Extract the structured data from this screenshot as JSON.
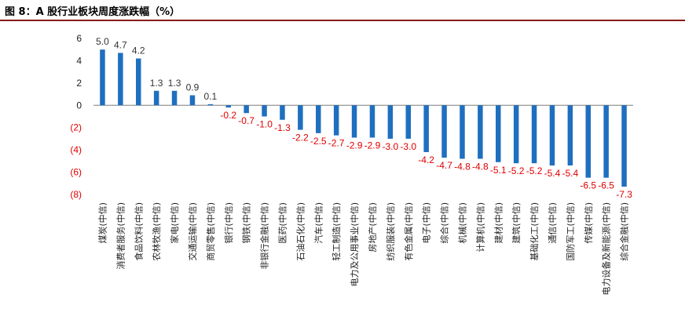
{
  "header": {
    "title": "图 8：A 股行业板块周度涨跌幅（%）"
  },
  "chart_data": {
    "type": "bar",
    "title": "图 8：A 股行业板块周度涨跌幅（%）",
    "xlabel": "",
    "ylabel": "",
    "ylim": [
      -8,
      6
    ],
    "yticks": [
      6,
      4,
      2,
      0,
      -2,
      -4,
      -6,
      -8
    ],
    "ytick_labels": [
      "6",
      "4",
      "2",
      "0",
      "(2)",
      "(4)",
      "(6)",
      "(8)"
    ],
    "grid": false,
    "legend": "none",
    "colors": {
      "bar": "#1f6fbf",
      "positive_text": "#333333",
      "negative_text": "#e00000",
      "title_rule": "#8b1a1a"
    },
    "categories": [
      "煤炭(中信)",
      "消费者服务(中信)",
      "食品饮料(中信)",
      "农林牧渔(中信)",
      "家电(中信)",
      "交通运输(中信)",
      "商贸零售(中信)",
      "银行(中信)",
      "钢铁(中信)",
      "非银行金融(中信)",
      "医药(中信)",
      "石油石化(中信)",
      "汽车(中信)",
      "轻工制造(中信)",
      "电力及公用事业(中信)",
      "房地产(中信)",
      "纺织服装(中信)",
      "有色金属(中信)",
      "电子(中信)",
      "综合(中信)",
      "机械(中信)",
      "计算机(中信)",
      "建材(中信)",
      "建筑(中信)",
      "基础化工(中信)",
      "通信(中信)",
      "国防军工(中信)",
      "传媒(中信)",
      "电力设备及新能源(中信)",
      "综合金融(中信)"
    ],
    "values": [
      5.0,
      4.7,
      4.2,
      1.3,
      1.3,
      0.9,
      0.1,
      -0.2,
      -0.7,
      -1.0,
      -1.3,
      -2.2,
      -2.5,
      -2.7,
      -2.9,
      -2.9,
      -3.0,
      -3.0,
      -4.2,
      -4.7,
      -4.8,
      -4.8,
      -5.1,
      -5.2,
      -5.2,
      -5.4,
      -5.4,
      -6.5,
      -6.5,
      -7.3
    ],
    "data_labels": [
      "5.0",
      "4.7",
      "4.2",
      "1.3",
      "1.3",
      "0.9",
      "0.1",
      "-0.2",
      "-0.7",
      "-1.0",
      "-1.3",
      "-2.2",
      "-2.5",
      "-2.7",
      "-2.9",
      "-2.9",
      "-3.0",
      "-3.0",
      "-4.2",
      "-4.7",
      "-4.8",
      "-4.8",
      "-5.1",
      "-5.2",
      "-5.2",
      "-5.4",
      "-5.4",
      "-6.5",
      "-6.5",
      "-7.3"
    ]
  }
}
